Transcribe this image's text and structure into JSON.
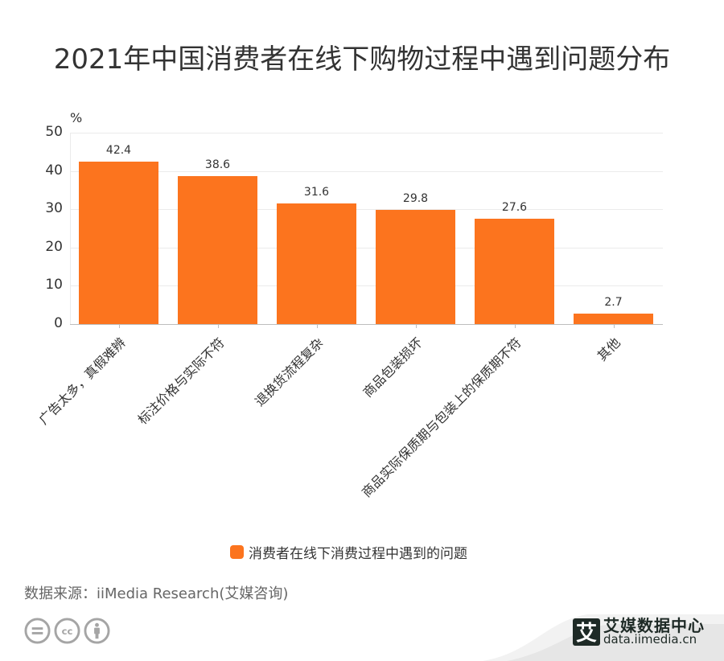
{
  "header": {
    "title": "2021年中国消费者在线下购物过程中遇到问题分布"
  },
  "chart_data": {
    "type": "bar",
    "title": "2021年中国消费者在线下购物过程中遇到问题分布",
    "xlabel": "",
    "ylabel": "%",
    "ylim": [
      0,
      50
    ],
    "yticks": [
      "0",
      "10",
      "20",
      "30",
      "40",
      "50"
    ],
    "grid": true,
    "legend_position": "bottom",
    "categories": [
      "广告太多，真假难辨",
      "标注价格与实际不符",
      "退换货流程复杂",
      "商品包装损坏",
      "商品实际保质期与包装上的保质期不符",
      "其他"
    ],
    "series": [
      {
        "name": "消费者在线下消费过程中遇到的问题",
        "color": "#fc741e",
        "values": [
          42.4,
          38.6,
          31.6,
          29.8,
          27.6,
          2.7
        ],
        "labels": [
          "42.4",
          "38.6",
          "31.6",
          "29.8",
          "27.6",
          "2.7"
        ]
      }
    ]
  },
  "footer": {
    "source": "数据来源：iiMedia Research(艾媒咨询)",
    "license_icons": [
      "nd-icon",
      "cc-icon",
      "by-icon"
    ],
    "brand_logo_char": "艾",
    "brand_name": "艾媒数据中心",
    "brand_url": "data.iimedia.cn"
  }
}
